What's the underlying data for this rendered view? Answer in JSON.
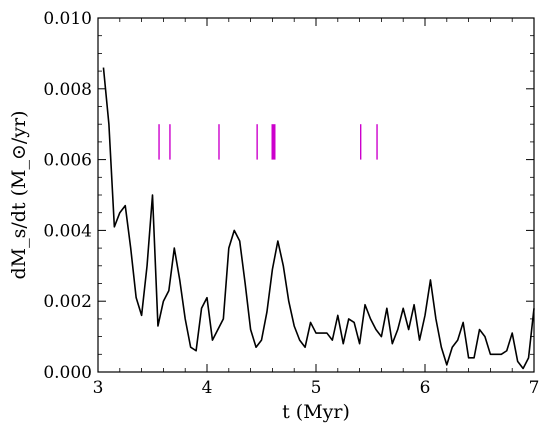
{
  "chart_data": {
    "type": "line",
    "xlabel": "t (Myr)",
    "ylabel": "dM_s/dt (M_⊙/yr)",
    "xlim": [
      3,
      7
    ],
    "ylim": [
      0,
      0.01
    ],
    "x_ticks": [
      3,
      4,
      5,
      6,
      7
    ],
    "x_tick_labels": [
      "3",
      "4",
      "5",
      "6",
      "7"
    ],
    "y_ticks": [
      0,
      0.002,
      0.004,
      0.006,
      0.008,
      0.01
    ],
    "y_tick_labels": [
      "0.000",
      "0.002",
      "0.004",
      "0.006",
      "0.008",
      "0.010"
    ],
    "grid": false,
    "line_color": "#000000",
    "marker_color": "#cc00cc",
    "series": [
      {
        "x": [
          3.05,
          3.1,
          3.15,
          3.2,
          3.25,
          3.3,
          3.35,
          3.4,
          3.45,
          3.5,
          3.55,
          3.6,
          3.65,
          3.7,
          3.75,
          3.8,
          3.85,
          3.9,
          3.95,
          4.0,
          4.05,
          4.1,
          4.15,
          4.2,
          4.25,
          4.3,
          4.35,
          4.4,
          4.45,
          4.5,
          4.55,
          4.6,
          4.65,
          4.7,
          4.75,
          4.8,
          4.85,
          4.9,
          4.95,
          5.0,
          5.05,
          5.1,
          5.15,
          5.2,
          5.25,
          5.3,
          5.35,
          5.4,
          5.45,
          5.5,
          5.55,
          5.6,
          5.65,
          5.7,
          5.75,
          5.8,
          5.85,
          5.9,
          5.95,
          6.0,
          6.05,
          6.1,
          6.15,
          6.2,
          6.25,
          6.3,
          6.35,
          6.4,
          6.45,
          6.5,
          6.55,
          6.6,
          6.65,
          6.7,
          6.75,
          6.8,
          6.85,
          6.9,
          6.95,
          7.0
        ],
        "y": [
          0.0086,
          0.007,
          0.0041,
          0.0045,
          0.0047,
          0.0035,
          0.0021,
          0.0016,
          0.003,
          0.005,
          0.0013,
          0.002,
          0.0023,
          0.0035,
          0.0026,
          0.0015,
          0.0007,
          0.0006,
          0.0018,
          0.0021,
          0.0009,
          0.0012,
          0.0015,
          0.0035,
          0.004,
          0.0037,
          0.0025,
          0.0012,
          0.0007,
          0.0009,
          0.0017,
          0.0029,
          0.0037,
          0.003,
          0.002,
          0.0013,
          0.0009,
          0.0007,
          0.0014,
          0.0011,
          0.0011,
          0.0011,
          0.0009,
          0.0016,
          0.0008,
          0.0015,
          0.0014,
          0.0008,
          0.0019,
          0.0015,
          0.0012,
          0.001,
          0.0018,
          0.0008,
          0.0012,
          0.0018,
          0.0012,
          0.0019,
          0.0009,
          0.0016,
          0.0026,
          0.0015,
          0.0007,
          0.0002,
          0.0007,
          0.0009,
          0.0014,
          0.0004,
          0.0004,
          0.0012,
          0.001,
          0.0005,
          0.0005,
          0.0005,
          0.0006,
          0.0011,
          0.0003,
          0.0001,
          0.0004,
          0.0018
        ]
      }
    ],
    "event_markers": [
      {
        "x": 3.56,
        "y_range": [
          0.006,
          0.007
        ],
        "bold": false
      },
      {
        "x": 3.66,
        "y_range": [
          0.006,
          0.007
        ],
        "bold": false
      },
      {
        "x": 4.11,
        "y_range": [
          0.006,
          0.007
        ],
        "bold": false
      },
      {
        "x": 4.46,
        "y_range": [
          0.006,
          0.007
        ],
        "bold": false
      },
      {
        "x": 4.61,
        "y_range": [
          0.006,
          0.007
        ],
        "bold": true
      },
      {
        "x": 5.41,
        "y_range": [
          0.006,
          0.007
        ],
        "bold": false
      },
      {
        "x": 5.56,
        "y_range": [
          0.006,
          0.007
        ],
        "bold": false
      }
    ]
  }
}
